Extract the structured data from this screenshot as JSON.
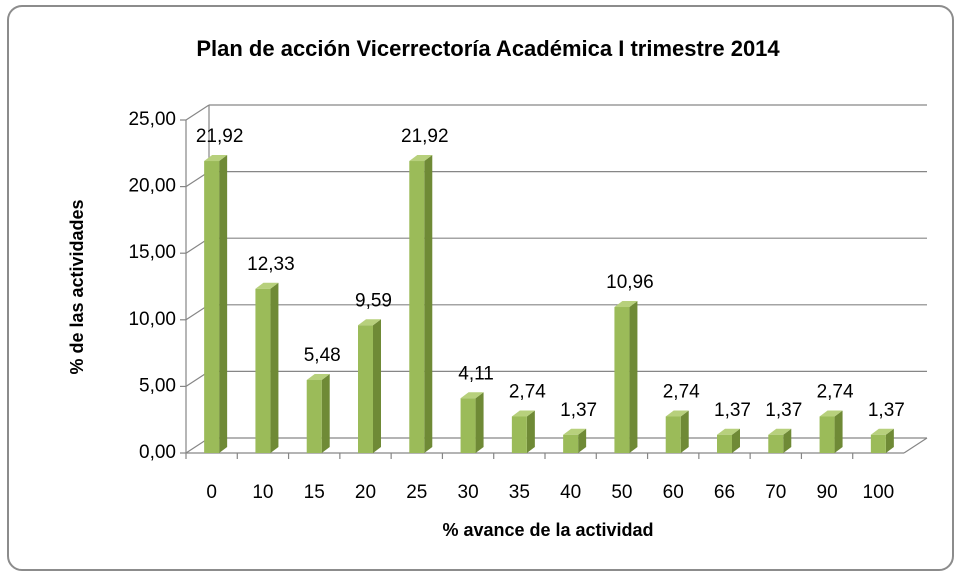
{
  "chart_data": {
    "type": "bar3d",
    "title": "Plan de acción Vicerrectoría Académica I trimestre 2014",
    "x_label": "% avance de la actividad",
    "y_label": "% de las actividades",
    "categories": [
      "0",
      "10",
      "15",
      "20",
      "25",
      "30",
      "35",
      "40",
      "50",
      "60",
      "66",
      "70",
      "90",
      "100"
    ],
    "values": [
      21.92,
      12.33,
      5.48,
      9.59,
      21.92,
      4.11,
      2.74,
      1.37,
      10.96,
      2.74,
      1.37,
      1.37,
      2.74,
      1.37
    ],
    "value_labels": [
      "21,92",
      "12,33",
      "5,48",
      "9,59",
      "21,92",
      "4,11",
      "2,74",
      "1,37",
      "10,96",
      "2,74",
      "1,37",
      "1,37",
      "2,74",
      "1,37"
    ],
    "color": "#9bbb59",
    "ylim": [
      0,
      25
    ],
    "yticks": [
      {
        "value": 0,
        "label": "0,00"
      },
      {
        "value": 5,
        "label": "5,00"
      },
      {
        "value": 10,
        "label": "10,00"
      },
      {
        "value": 15,
        "label": "15,00"
      },
      {
        "value": 20,
        "label": "20,00"
      },
      {
        "value": 25,
        "label": "25,00"
      }
    ],
    "grid": true
  }
}
